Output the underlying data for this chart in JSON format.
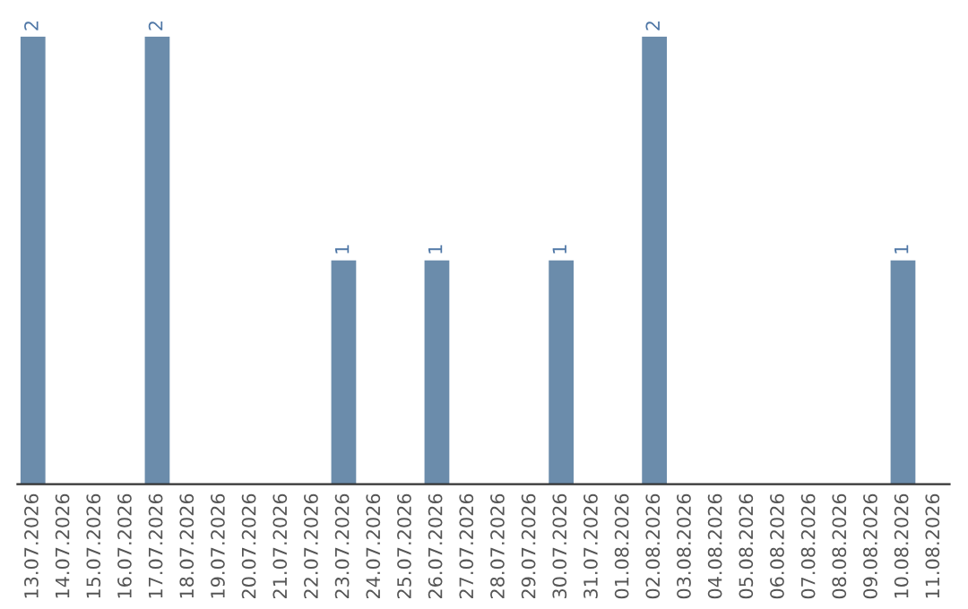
{
  "chart_data": {
    "type": "bar",
    "categories": [
      "13.07.2026",
      "14.07.2026",
      "15.07.2026",
      "16.07.2026",
      "17.07.2026",
      "18.07.2026",
      "19.07.2026",
      "20.07.2026",
      "21.07.2026",
      "22.07.2026",
      "23.07.2026",
      "24.07.2026",
      "25.07.2026",
      "26.07.2026",
      "27.07.2026",
      "28.07.2026",
      "29.07.2026",
      "30.07.2026",
      "31.07.2026",
      "01.08.2026",
      "02.08.2026",
      "03.08.2026",
      "04.08.2026",
      "05.08.2026",
      "06.08.2026",
      "07.08.2026",
      "08.08.2026",
      "09.08.2026",
      "10.08.2026",
      "11.08.2026"
    ],
    "values": [
      2,
      0,
      0,
      0,
      2,
      0,
      0,
      0,
      0,
      0,
      1,
      0,
      0,
      1,
      0,
      0,
      0,
      1,
      0,
      0,
      2,
      0,
      0,
      0,
      0,
      0,
      0,
      0,
      1,
      0
    ],
    "value_labels": [
      "2",
      null,
      null,
      null,
      "2",
      null,
      null,
      null,
      null,
      null,
      "1",
      null,
      null,
      "1",
      null,
      null,
      null,
      "1",
      null,
      null,
      "2",
      null,
      null,
      null,
      null,
      null,
      null,
      null,
      "1",
      null
    ],
    "color": "#6b8cab",
    "ylim": [
      0,
      2
    ],
    "tick_labels": "x",
    "grid": false,
    "legend": false
  }
}
